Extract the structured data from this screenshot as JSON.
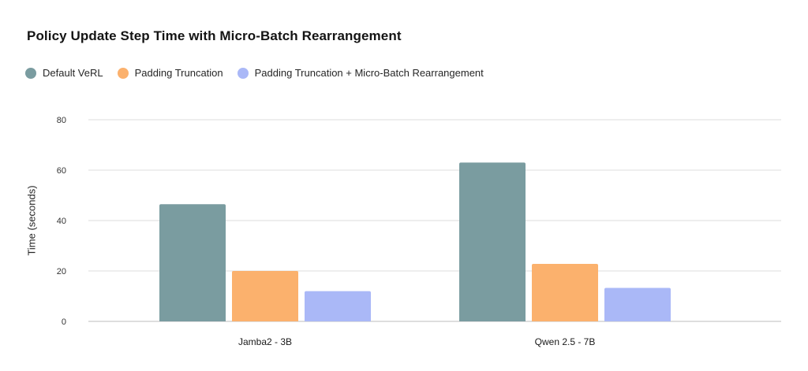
{
  "chart_data": {
    "type": "bar",
    "title": "Policy Update Step Time with Micro-Batch Rearrangement",
    "ylabel": "Time (seconds)",
    "xlabel": "",
    "ylim": [
      0,
      80
    ],
    "yticks": [
      0,
      20,
      40,
      60,
      80
    ],
    "grid": true,
    "legend_position": "top-left",
    "categories": [
      "Jamba2 - 3B",
      "Qwen 2.5 - 7B"
    ],
    "series": [
      {
        "name": "Default VeRL",
        "color": "#7a9ca0",
        "values": [
          46.5,
          63
        ]
      },
      {
        "name": "Padding Truncation",
        "color": "#fbb16d",
        "values": [
          20,
          22.8
        ]
      },
      {
        "name": "Padding Truncation + Micro-Batch Rearrangement",
        "color": "#aab8f7",
        "values": [
          12,
          13.3
        ]
      }
    ]
  }
}
